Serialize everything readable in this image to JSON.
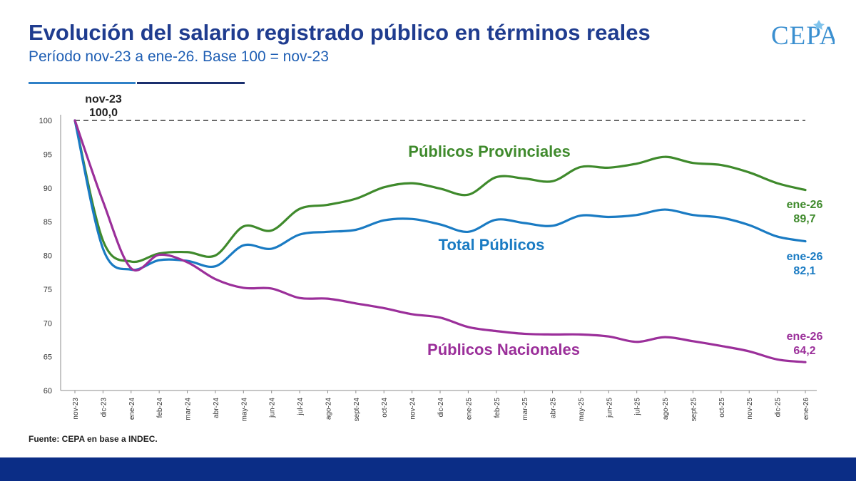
{
  "header": {
    "title": "Evolución del salario registrado público en términos reales",
    "subtitle": "Período nov-23 a ene-26. Base 100 = nov-23"
  },
  "logo": {
    "text": "CEPA"
  },
  "footer": {
    "source": "Fuente: CEPA en base a INDEC."
  },
  "colors": {
    "provinciales": "#3f8a2c",
    "total": "#1a7bc3",
    "nacionales": "#9b2f9a",
    "title": "#1f3c8f",
    "footer_bar": "#0b2d86"
  },
  "chart_data": {
    "type": "line",
    "title": "Evolución del salario registrado público en términos reales",
    "subtitle": "Período nov-23 a ene-26. Base 100 = nov-23",
    "categories": [
      "nov-23",
      "dic-23",
      "ene-24",
      "feb-24",
      "mar-24",
      "abr-24",
      "may-24",
      "jun-24",
      "jul-24",
      "ago-24",
      "sept-24",
      "oct-24",
      "nov-24",
      "dic-24",
      "ene-25",
      "feb-25",
      "mar-25",
      "abr-25",
      "may-25",
      "jun-25",
      "jul-25",
      "ago-25",
      "sept-25",
      "oct-25",
      "nov-25",
      "dic-25",
      "ene-26"
    ],
    "ylim": [
      60,
      100
    ],
    "yticks": [
      60,
      65,
      70,
      75,
      80,
      85,
      90,
      95,
      100
    ],
    "grid": false,
    "reference_line": 100,
    "series": [
      {
        "name": "Públicos Provinciales",
        "color": "#3f8a2c",
        "values": [
          100.0,
          82.2,
          79.1,
          80.3,
          80.5,
          80.0,
          84.3,
          83.7,
          86.9,
          87.5,
          88.4,
          90.1,
          90.7,
          89.9,
          89.0,
          91.6,
          91.4,
          91.0,
          93.1,
          93.0,
          93.6,
          94.6,
          93.7,
          93.4,
          92.3,
          90.7,
          89.7
        ],
        "end_label": [
          "ene-26",
          "89,7"
        ]
      },
      {
        "name": "Total Públicos",
        "color": "#1a7bc3",
        "values": [
          100.0,
          81.0,
          77.9,
          79.3,
          79.2,
          78.4,
          81.5,
          81.0,
          83.1,
          83.5,
          83.8,
          85.2,
          85.4,
          84.6,
          83.5,
          85.3,
          84.8,
          84.4,
          85.9,
          85.7,
          86.0,
          86.8,
          86.0,
          85.6,
          84.5,
          82.8,
          82.1
        ],
        "end_label": [
          "ene-26",
          "82,1"
        ]
      },
      {
        "name": "Públicos Nacionales",
        "color": "#9b2f9a",
        "values": [
          100.0,
          88.0,
          78.1,
          80.1,
          79.0,
          76.5,
          75.2,
          75.1,
          73.7,
          73.6,
          72.9,
          72.2,
          71.3,
          70.8,
          69.4,
          68.8,
          68.4,
          68.3,
          68.3,
          68.0,
          67.2,
          67.9,
          67.3,
          66.6,
          65.8,
          64.6,
          64.2
        ],
        "end_label": [
          "ene-26",
          "64,2"
        ]
      }
    ],
    "annotations": [
      {
        "label": "nov-23",
        "value": "100,0"
      }
    ]
  }
}
